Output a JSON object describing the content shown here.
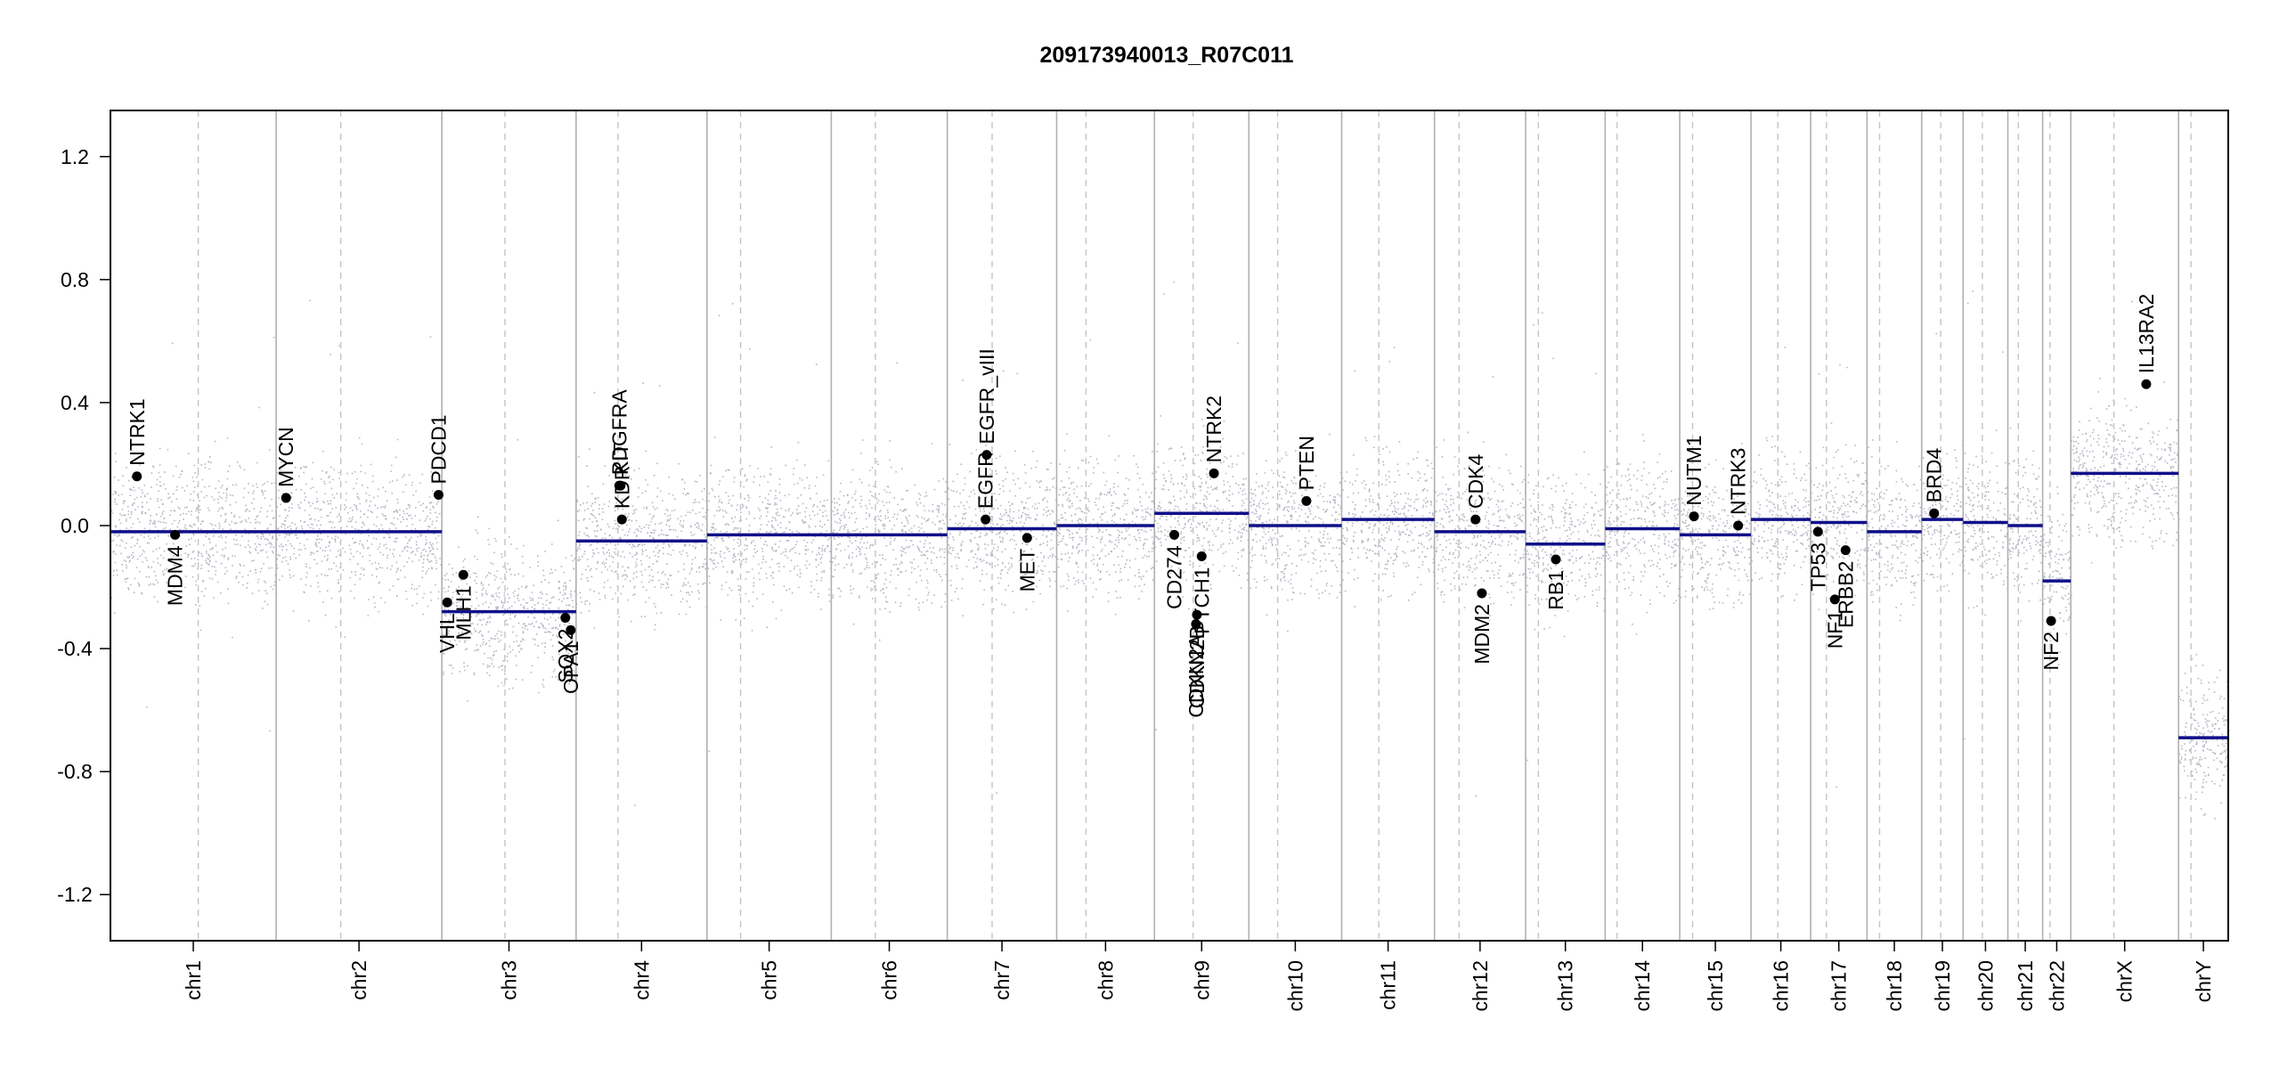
{
  "chart_data": {
    "type": "scatter",
    "title": "209173940013_R07C011",
    "xlabel": "",
    "ylabel": "",
    "ylim": [
      -1.35,
      1.35
    ],
    "y_ticks": [
      -1.2,
      -0.8,
      -0.4,
      0.0,
      0.4,
      0.8,
      1.2
    ],
    "y_tick_labels": [
      "-1.2",
      "-0.8",
      "-0.4",
      "0.0",
      "0.4",
      "0.8",
      "1.2"
    ],
    "grid": false,
    "chromosomes": [
      {
        "name": "chr1",
        "span": [
          0.0,
          1.0
        ],
        "centromere": 0.53,
        "segment": -0.02
      },
      {
        "name": "chr2",
        "span": [
          1.0,
          2.0
        ],
        "centromere": 0.39,
        "segment": -0.02
      },
      {
        "name": "chr3",
        "span": [
          2.0,
          2.81
        ],
        "centromere": 0.47,
        "segment": -0.28
      },
      {
        "name": "chr4",
        "span": [
          2.81,
          3.6
        ],
        "centromere": 0.32,
        "segment": -0.05
      },
      {
        "name": "chr5",
        "span": [
          3.6,
          4.35
        ],
        "centromere": 0.27,
        "segment": -0.03
      },
      {
        "name": "chr6",
        "span": [
          4.35,
          5.05
        ],
        "centromere": 0.38,
        "segment": -0.03
      },
      {
        "name": "chr7",
        "span": [
          5.05,
          5.71
        ],
        "centromere": 0.41,
        "segment": -0.01
      },
      {
        "name": "chr8",
        "span": [
          5.71,
          6.3
        ],
        "centromere": 0.3,
        "segment": 0.0
      },
      {
        "name": "chr9",
        "span": [
          6.3,
          6.87
        ],
        "centromere": 0.41,
        "segment": 0.04
      },
      {
        "name": "chr10",
        "span": [
          6.87,
          7.43
        ],
        "centromere": 0.31,
        "segment": 0.0
      },
      {
        "name": "chr11",
        "span": [
          7.43,
          7.99
        ],
        "centromere": 0.4,
        "segment": 0.02
      },
      {
        "name": "chr12",
        "span": [
          7.99,
          8.54
        ],
        "centromere": 0.27,
        "segment": -0.02
      },
      {
        "name": "chr13",
        "span": [
          8.54,
          9.02
        ],
        "centromere": 0.16,
        "segment": -0.06
      },
      {
        "name": "chr14",
        "span": [
          9.02,
          9.47
        ],
        "centromere": 0.16,
        "segment": -0.01
      },
      {
        "name": "chr15",
        "span": [
          9.47,
          9.9
        ],
        "centromere": 0.18,
        "segment": -0.03
      },
      {
        "name": "chr16",
        "span": [
          9.9,
          10.26
        ],
        "centromere": 0.45,
        "segment": 0.02
      },
      {
        "name": "chr17",
        "span": [
          10.26,
          10.6
        ],
        "centromere": 0.28,
        "segment": 0.01
      },
      {
        "name": "chr18",
        "span": [
          10.6,
          10.93
        ],
        "centromere": 0.23,
        "segment": -0.02
      },
      {
        "name": "chr19",
        "span": [
          10.93,
          11.18
        ],
        "centromere": 0.46,
        "segment": 0.02
      },
      {
        "name": "chr20",
        "span": [
          11.18,
          11.45
        ],
        "centromere": 0.43,
        "segment": 0.01
      },
      {
        "name": "chr21",
        "span": [
          11.45,
          11.66
        ],
        "centromere": 0.3,
        "segment": 0.0
      },
      {
        "name": "chr22",
        "span": [
          11.66,
          11.83
        ],
        "centromere": 0.26,
        "segment": -0.18
      },
      {
        "name": "chrX",
        "span": [
          11.83,
          12.48
        ],
        "centromere": 0.4,
        "segment": 0.17
      },
      {
        "name": "chrY",
        "span": [
          12.48,
          12.78
        ],
        "centromere": 0.25,
        "segment": -0.69
      }
    ],
    "genes": [
      {
        "name": "NTRK1",
        "chr": "chr1",
        "pos": 0.16,
        "value": 0.16
      },
      {
        "name": "MDM4",
        "chr": "chr1",
        "pos": 0.39,
        "value": -0.03
      },
      {
        "name": "MYCN",
        "chr": "chr2",
        "pos": 0.06,
        "value": 0.09
      },
      {
        "name": "PDCD1",
        "chr": "chr2",
        "pos": 0.98,
        "value": 0.1
      },
      {
        "name": "VHL",
        "chr": "chr3",
        "pos": 0.04,
        "value": -0.25
      },
      {
        "name": "MLH1",
        "chr": "chr3",
        "pos": 0.16,
        "value": -0.16
      },
      {
        "name": "SOX2",
        "chr": "chr3",
        "pos": 0.92,
        "value": -0.3
      },
      {
        "name": "OPA1",
        "chr": "chr3",
        "pos": 0.96,
        "value": -0.34
      },
      {
        "name": "PDGFRA",
        "chr": "chr4",
        "pos": 0.33,
        "value": 0.13
      },
      {
        "name": "KIT",
        "chr": "chr4",
        "pos": 0.34,
        "value": 0.13
      },
      {
        "name": "KDR",
        "chr": "chr4",
        "pos": 0.35,
        "value": 0.02
      },
      {
        "name": "EGFR",
        "chr": "chr7",
        "pos": 0.35,
        "value": 0.02
      },
      {
        "name": "EGFR_vIII",
        "chr": "chr7",
        "pos": 0.36,
        "value": 0.23
      },
      {
        "name": "MET",
        "chr": "chr7",
        "pos": 0.73,
        "value": -0.04
      },
      {
        "name": "CDKN2A",
        "chr": "chr9",
        "pos": 0.44,
        "value": -0.32
      },
      {
        "name": "CDKN2B",
        "chr": "chr9",
        "pos": 0.45,
        "value": -0.29
      },
      {
        "name": "CD274",
        "chr": "chr9",
        "pos": 0.21,
        "value": -0.03
      },
      {
        "name": "PTCH1",
        "chr": "chr9",
        "pos": 0.5,
        "value": -0.1
      },
      {
        "name": "NTRK2",
        "chr": "chr9",
        "pos": 0.63,
        "value": 0.17
      },
      {
        "name": "PTEN",
        "chr": "chr10",
        "pos": 0.62,
        "value": 0.08
      },
      {
        "name": "CDK4",
        "chr": "chr12",
        "pos": 0.45,
        "value": 0.02
      },
      {
        "name": "MDM2",
        "chr": "chr12",
        "pos": 0.52,
        "value": -0.22
      },
      {
        "name": "RB1",
        "chr": "chr13",
        "pos": 0.38,
        "value": -0.11
      },
      {
        "name": "NUTM1",
        "chr": "chr15",
        "pos": 0.2,
        "value": 0.03
      },
      {
        "name": "NTRK3",
        "chr": "chr15",
        "pos": 0.82,
        "value": 0.0
      },
      {
        "name": "TP53",
        "chr": "chr17",
        "pos": 0.13,
        "value": -0.02
      },
      {
        "name": "NF1",
        "chr": "chr17",
        "pos": 0.43,
        "value": -0.24
      },
      {
        "name": "ERBB2",
        "chr": "chr17",
        "pos": 0.62,
        "value": -0.08
      },
      {
        "name": "BRD4",
        "chr": "chr19",
        "pos": 0.3,
        "value": 0.04
      },
      {
        "name": "NF2",
        "chr": "chr22",
        "pos": 0.3,
        "value": -0.31
      },
      {
        "name": "IL13RA2",
        "chr": "chrX",
        "pos": 0.7,
        "value": 0.46
      }
    ]
  }
}
